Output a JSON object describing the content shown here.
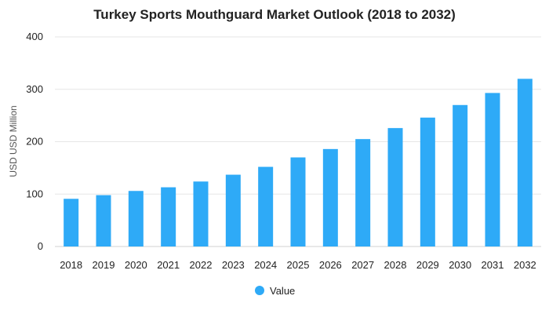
{
  "chart_data": {
    "type": "bar",
    "title": "Turkey Sports Mouthguard Market Outlook (2018 to 2032)",
    "xlabel": "",
    "ylabel": "USD USD Million",
    "ylim": [
      0,
      400
    ],
    "yticks": [
      0,
      100,
      200,
      300,
      400
    ],
    "grid": true,
    "legend_position": "bottom",
    "categories": [
      "2018",
      "2019",
      "2020",
      "2021",
      "2022",
      "2023",
      "2024",
      "2025",
      "2026",
      "2027",
      "2028",
      "2029",
      "2030",
      "2031",
      "2032"
    ],
    "series": [
      {
        "name": "Value",
        "color": "#2eaaf7",
        "values": [
          91,
          98,
          106,
          113,
          124,
          137,
          152,
          170,
          186,
          205,
          226,
          246,
          270,
          293,
          320
        ]
      }
    ]
  }
}
